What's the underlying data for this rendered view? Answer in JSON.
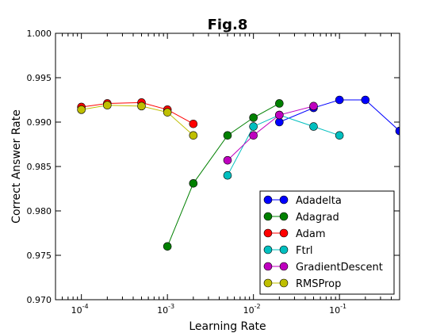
{
  "chart_data": {
    "type": "line",
    "title": "Fig.8",
    "xlabel": "Learning Rate",
    "ylabel": "Correct Answer Rate",
    "xscale": "log",
    "xlim": [
      5e-05,
      0.5
    ],
    "ylim": [
      0.97,
      1.0
    ],
    "yticks": [
      "0.970",
      "0.975",
      "0.980",
      "0.985",
      "0.990",
      "0.995",
      "1.000"
    ],
    "xtick_exponents": [
      "-4",
      "-3",
      "-2",
      "-1"
    ],
    "xtick_base": "10",
    "grid": false,
    "legend_position": "lower-right",
    "series": [
      {
        "name": "Adadelta",
        "color": "#0000ff",
        "x": [
          0.02,
          0.05,
          0.1,
          0.2,
          0.5
        ],
        "y": [
          0.99,
          0.9916,
          0.9925,
          0.9925,
          0.989
        ]
      },
      {
        "name": "Adagrad",
        "color": "#008000",
        "x": [
          0.001,
          0.002,
          0.005,
          0.01,
          0.02
        ],
        "y": [
          0.976,
          0.9831,
          0.9885,
          0.9905,
          0.9921
        ]
      },
      {
        "name": "Adam",
        "color": "#ff0000",
        "x": [
          0.0001,
          0.0002,
          0.0005,
          0.001,
          0.002
        ],
        "y": [
          0.9917,
          0.9921,
          0.9922,
          0.9914,
          0.9898
        ]
      },
      {
        "name": "Ftrl",
        "color": "#00bfbf",
        "x": [
          0.005,
          0.01,
          0.02,
          0.05,
          0.1
        ],
        "y": [
          0.984,
          0.9895,
          0.9908,
          0.9895,
          0.9885
        ]
      },
      {
        "name": "GradientDescent",
        "color": "#bf00bf",
        "x": [
          0.005,
          0.01,
          0.02,
          0.05
        ],
        "y": [
          0.9857,
          0.9885,
          0.9908,
          0.9918
        ]
      },
      {
        "name": "RMSProp",
        "color": "#bfbf00",
        "x": [
          0.0001,
          0.0002,
          0.0005,
          0.001,
          0.002
        ],
        "y": [
          0.9914,
          0.9919,
          0.9918,
          0.9911,
          0.9885
        ]
      }
    ]
  }
}
